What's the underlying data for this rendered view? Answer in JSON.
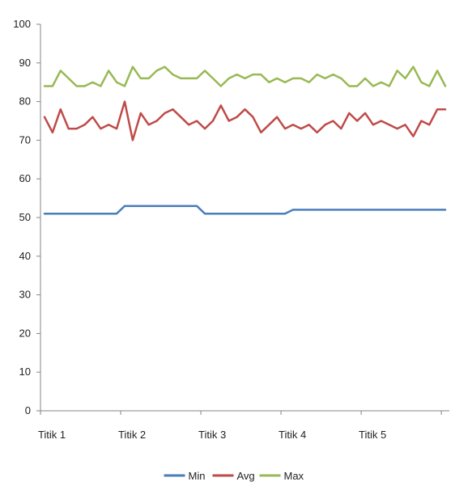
{
  "chart_data": {
    "type": "line",
    "title": "",
    "xlabel": "",
    "ylabel": "",
    "ylim": [
      0,
      100
    ],
    "yticks": [
      0,
      10,
      20,
      30,
      40,
      50,
      60,
      70,
      80,
      90,
      100
    ],
    "grid": false,
    "legend_position": "bottom",
    "categories": [
      "Titik 1",
      "Titik 2",
      "Titik 3",
      "Titik 4",
      "Titik 5"
    ],
    "x_range": [
      0,
      50
    ],
    "category_positions": [
      0,
      10,
      20,
      30,
      40
    ],
    "series": [
      {
        "name": "Min",
        "color": "#4a7ebb",
        "x": [
          0,
          9,
          10,
          19,
          20,
          30,
          31,
          50
        ],
        "values": [
          51,
          51,
          53,
          53,
          51,
          51,
          52,
          52
        ]
      },
      {
        "name": "Avg",
        "color": "#be4b48",
        "x": [
          0,
          1,
          2,
          3,
          4,
          5,
          6,
          7,
          8,
          9,
          10,
          11,
          12,
          13,
          14,
          15,
          16,
          17,
          18,
          19,
          20,
          21,
          22,
          23,
          24,
          25,
          26,
          27,
          28,
          29,
          30,
          31,
          32,
          33,
          34,
          35,
          36,
          37,
          38,
          39,
          40,
          41,
          42,
          43,
          44,
          45,
          46,
          47,
          48,
          49,
          50
        ],
        "values": [
          76,
          72,
          78,
          73,
          73,
          74,
          76,
          73,
          74,
          73,
          80,
          70,
          77,
          74,
          75,
          77,
          78,
          76,
          74,
          75,
          73,
          75,
          79,
          75,
          76,
          78,
          76,
          72,
          74,
          76,
          73,
          74,
          73,
          74,
          72,
          74,
          75,
          73,
          77,
          75,
          77,
          74,
          75,
          74,
          73,
          74,
          71,
          75,
          74,
          78,
          78
        ]
      },
      {
        "name": "Max",
        "color": "#98b954",
        "x": [
          0,
          1,
          2,
          3,
          4,
          5,
          6,
          7,
          8,
          9,
          10,
          11,
          12,
          13,
          14,
          15,
          16,
          17,
          18,
          19,
          20,
          21,
          22,
          23,
          24,
          25,
          26,
          27,
          28,
          29,
          30,
          31,
          32,
          33,
          34,
          35,
          36,
          37,
          38,
          39,
          40,
          41,
          42,
          43,
          44,
          45,
          46,
          47,
          48,
          49,
          50
        ],
        "values": [
          84,
          84,
          88,
          86,
          84,
          84,
          85,
          84,
          88,
          85,
          84,
          89,
          86,
          86,
          88,
          89,
          87,
          86,
          86,
          86,
          88,
          86,
          84,
          86,
          87,
          86,
          87,
          87,
          85,
          86,
          85,
          86,
          86,
          85,
          87,
          86,
          87,
          86,
          84,
          84,
          86,
          84,
          85,
          84,
          88,
          86,
          89,
          85,
          84,
          88,
          84
        ]
      }
    ]
  }
}
